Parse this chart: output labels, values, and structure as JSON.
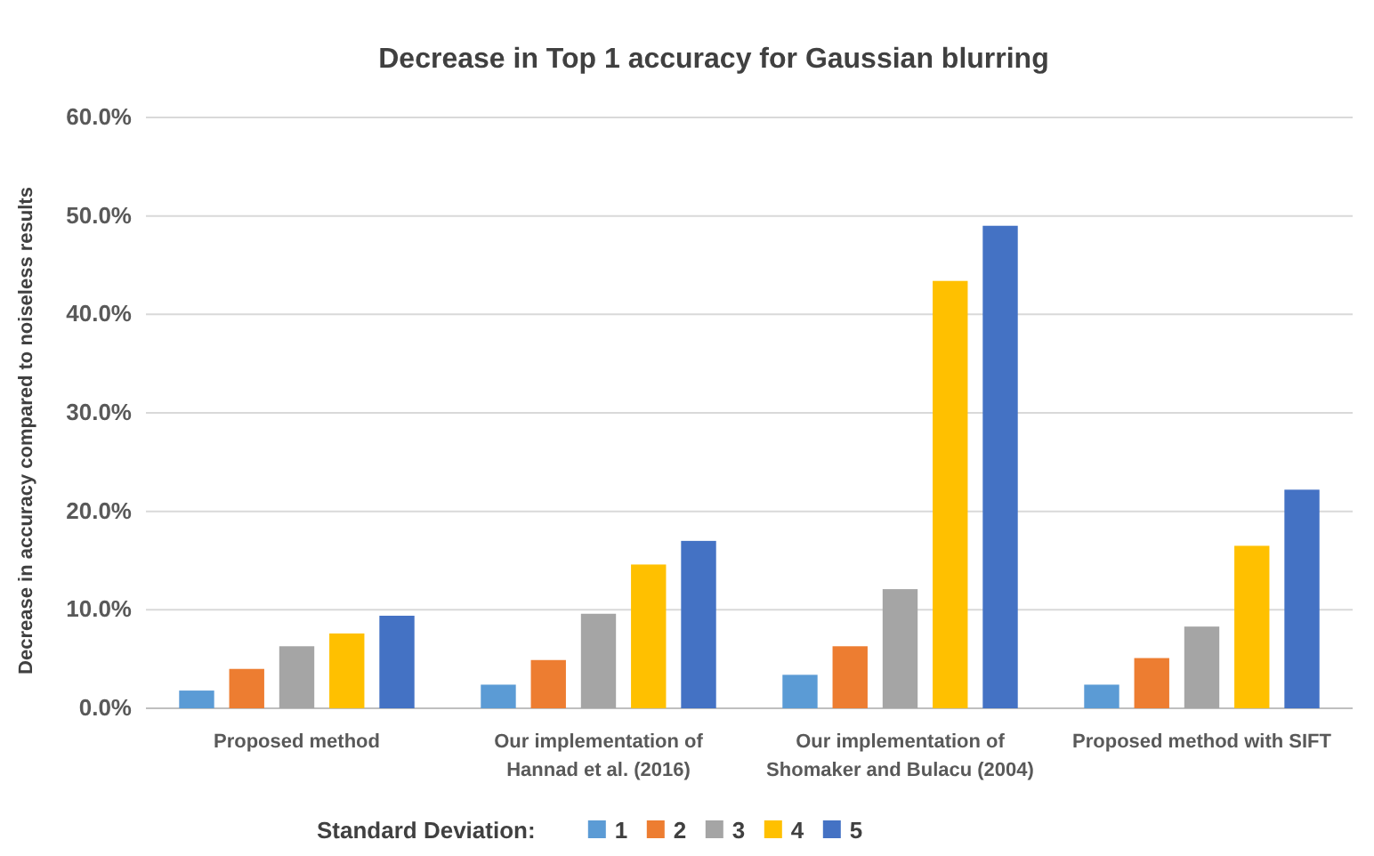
{
  "chart_data": {
    "type": "bar",
    "title": "Decrease in Top 1 accuracy for Gaussian blurring",
    "ylabel": "Decrease in accuracy compared to noiseless results",
    "legend_title": "Standard Deviation:",
    "categories": [
      "Proposed method",
      "Our implementation of Hannad et al. (2016)",
      "Our implementation of Shomaker and Bulacu (2004)",
      "Proposed method with SIFT"
    ],
    "series": [
      {
        "name": "1",
        "color": "#5b9bd5",
        "values": [
          1.8,
          2.4,
          3.4,
          2.4
        ]
      },
      {
        "name": "2",
        "color": "#ed7d31",
        "values": [
          4.0,
          4.9,
          6.3,
          5.1
        ]
      },
      {
        "name": "3",
        "color": "#a5a5a5",
        "values": [
          6.3,
          9.6,
          12.1,
          8.3
        ]
      },
      {
        "name": "4",
        "color": "#ffc000",
        "values": [
          7.6,
          14.6,
          43.4,
          16.5
        ]
      },
      {
        "name": "5",
        "color": "#4472c4",
        "values": [
          9.4,
          17.0,
          49.0,
          22.2
        ]
      }
    ],
    "ylim": [
      0,
      60
    ],
    "yticks": [
      {
        "value": 0,
        "label": "0.0%"
      },
      {
        "value": 10,
        "label": "10.0%"
      },
      {
        "value": 20,
        "label": "20.0%"
      },
      {
        "value": 30,
        "label": "30.0%"
      },
      {
        "value": 40,
        "label": "40.0%"
      },
      {
        "value": 50,
        "label": "50.0%"
      },
      {
        "value": 60,
        "label": "60.0%"
      }
    ],
    "grid": "y",
    "legend": "bottom"
  }
}
